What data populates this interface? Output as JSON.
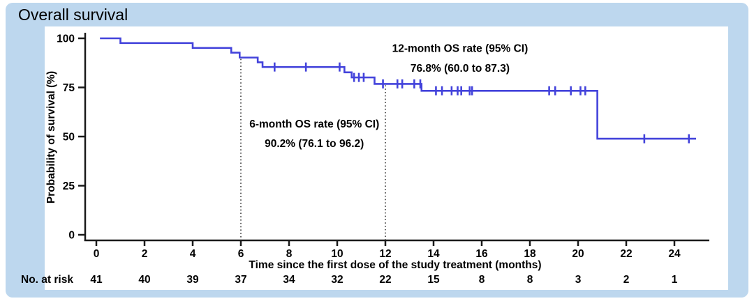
{
  "page": {
    "title": "Overall survival"
  },
  "colors": {
    "card_background": "#BDD7EE",
    "panel_background": "#FFFFFF",
    "curve": "#4343DB",
    "axis": "#1A1A1A",
    "text": "#000000",
    "reference_line": "#3A3A3A"
  },
  "chart_data": {
    "type": "line",
    "variant": "kaplan-meier-step",
    "title": "Overall survival",
    "xlabel": "Time since the first dose of the study treatment (months)",
    "ylabel": "Probability of survival (%)",
    "xlim": [
      0,
      25.5
    ],
    "ylim": [
      0,
      100
    ],
    "xticks": [
      0,
      2,
      4,
      6,
      8,
      10,
      12,
      14,
      16,
      18,
      20,
      22,
      24
    ],
    "yticks": [
      0,
      25,
      50,
      75,
      100
    ],
    "grid": false,
    "legend_position": "none",
    "series": [
      {
        "name": "Overall survival",
        "color": "#4343DB",
        "step_points": [
          [
            0.15,
            100
          ],
          [
            1.0,
            97.6
          ],
          [
            4.0,
            95.1
          ],
          [
            5.6,
            92.7
          ],
          [
            5.95,
            90.2
          ],
          [
            6.7,
            87.8
          ],
          [
            6.9,
            85.4
          ],
          [
            10.3,
            82.7
          ],
          [
            10.6,
            80.1
          ],
          [
            11.55,
            76.8
          ],
          [
            13.5,
            73.3
          ],
          [
            20.8,
            48.9
          ]
        ],
        "end_time": 24.9,
        "censor_marks": [
          [
            7.4,
            85.4
          ],
          [
            8.7,
            85.4
          ],
          [
            10.1,
            85.4
          ],
          [
            10.7,
            80.1
          ],
          [
            10.9,
            80.1
          ],
          [
            11.1,
            80.1
          ],
          [
            11.9,
            76.8
          ],
          [
            12.5,
            76.8
          ],
          [
            12.7,
            76.8
          ],
          [
            13.2,
            76.8
          ],
          [
            13.45,
            76.8
          ],
          [
            14.1,
            73.3
          ],
          [
            14.35,
            73.3
          ],
          [
            14.75,
            73.3
          ],
          [
            15.0,
            73.3
          ],
          [
            15.15,
            73.3
          ],
          [
            15.5,
            73.3
          ],
          [
            15.6,
            73.3
          ],
          [
            18.8,
            73.3
          ],
          [
            19.05,
            73.3
          ],
          [
            19.7,
            73.3
          ],
          [
            20.1,
            73.3
          ],
          [
            20.3,
            73.3
          ],
          [
            22.75,
            48.9
          ],
          [
            24.6,
            48.9
          ]
        ]
      }
    ],
    "reference_lines": [
      {
        "x": 6,
        "from_pct": 90.2,
        "style": "dotted"
      },
      {
        "x": 12,
        "from_pct": 76.8,
        "style": "dotted"
      }
    ],
    "annotations": [
      {
        "lines": [
          "12-month OS rate (95% CI)",
          "76.8% (60.0 to 87.3)"
        ],
        "t_center": 15.1,
        "pct_lines": [
          93.0,
          83.0
        ]
      },
      {
        "lines": [
          "6-month OS rate (95% CI)",
          "90.2% (76.1 to 96.2)"
        ],
        "t_center": 9.05,
        "pct_lines": [
          54.6,
          44.7
        ]
      }
    ],
    "at_risk": {
      "label": "No. at risk",
      "times": [
        0,
        2,
        4,
        6,
        8,
        10,
        12,
        14,
        16,
        18,
        20,
        22,
        24
      ],
      "values": [
        41,
        40,
        39,
        37,
        34,
        32,
        22,
        15,
        8,
        8,
        3,
        2,
        1
      ]
    }
  }
}
